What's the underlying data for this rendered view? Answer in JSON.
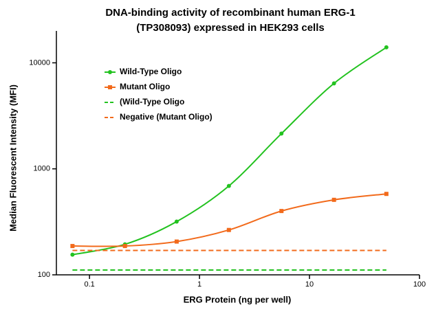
{
  "chart_data": {
    "type": "line",
    "title": [
      "DNA-binding activity of recombinant human ERG-1",
      "(TP308093) expressed in HEK293 cells"
    ],
    "x_label": "ERG Protein (ng per well)",
    "y_label": "Median  Fluorescent Intensity  (MFI)",
    "x": [
      0.07,
      0.21,
      0.62,
      1.85,
      5.56,
      16.7,
      50
    ],
    "series": [
      {
        "name": "Wild-Type Oligo",
        "color": "#22c21f",
        "marker": "circle",
        "dashed": false,
        "values": [
          155,
          194,
          318,
          690,
          2150,
          6400,
          14000
        ]
      },
      {
        "name": "Mutant Oligo",
        "color": "#f26a1b",
        "marker": "square",
        "dashed": false,
        "values": [
          187,
          187,
          206,
          265,
          400,
          510,
          580
        ]
      },
      {
        "name": "(Wild-Type Oligo",
        "color": "#22c21f",
        "marker": "none",
        "dashed": true,
        "values": [
          111,
          111,
          111,
          111,
          111,
          111,
          111
        ]
      },
      {
        "name": "Negative (Mutant Oligo)",
        "color": "#f26a1b",
        "marker": "none",
        "dashed": true,
        "values": [
          170,
          170,
          170,
          170,
          170,
          170,
          170
        ]
      }
    ],
    "xlim": [
      0.05,
      100
    ],
    "xticks": [
      0.1,
      1,
      10,
      100
    ],
    "xscale": "log",
    "ylim": [
      100,
      20000
    ],
    "yticks": [
      100,
      1000,
      10000
    ],
    "yscale": "log",
    "legend": "upper left",
    "grid": false
  }
}
